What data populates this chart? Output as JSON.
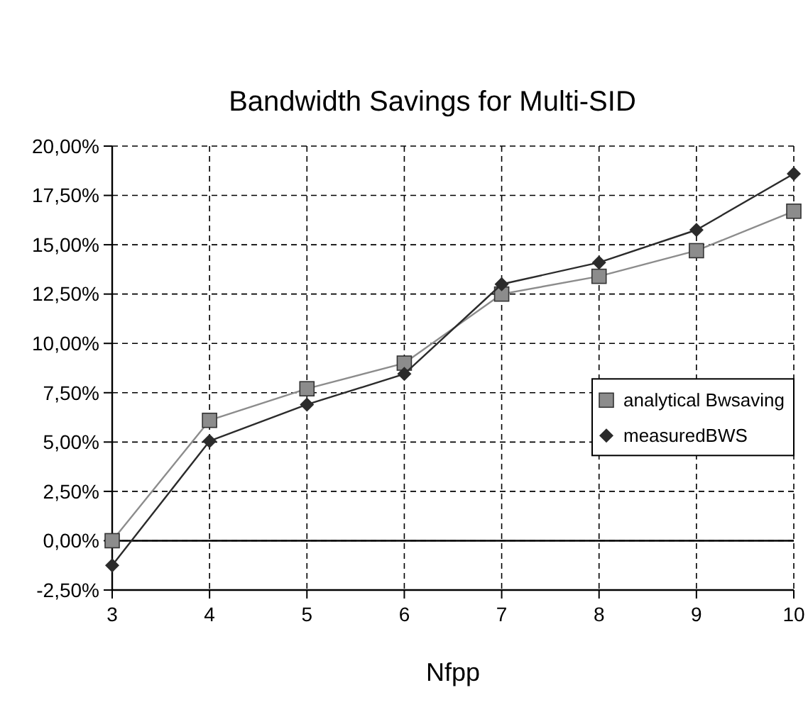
{
  "chart_data": {
    "type": "line",
    "title": "Bandwidth Savings for Multi-SID",
    "xlabel": "Nfpp",
    "x": [
      3,
      4,
      5,
      6,
      7,
      8,
      9,
      10
    ],
    "series": [
      {
        "name": "analytical Bwsaving",
        "color": "#8c8c8c",
        "marker": "square",
        "values": [
          0,
          6.1,
          7.7,
          9.0,
          12.5,
          13.4,
          14.7,
          16.7
        ]
      },
      {
        "name": "measuredBWS",
        "color": "#2b2b2b",
        "marker": "diamond",
        "values": [
          -1.25,
          5.05,
          6.9,
          8.45,
          13.0,
          14.1,
          15.75,
          18.6
        ]
      }
    ],
    "xlim": [
      3,
      10
    ],
    "xticks": [
      3,
      4,
      5,
      6,
      7,
      8,
      9,
      10
    ],
    "ylim": [
      -2.5,
      20
    ],
    "yticks": [
      {
        "value": -2.5,
        "label": "-2,50%"
      },
      {
        "value": 0,
        "label": "0,00%"
      },
      {
        "value": 2.5,
        "label": "2,50%"
      },
      {
        "value": 5,
        "label": "5,00%"
      },
      {
        "value": 7.5,
        "label": "7,50%"
      },
      {
        "value": 10,
        "label": "10,00%"
      },
      {
        "value": 12.5,
        "label": "12,50%"
      },
      {
        "value": 15,
        "label": "15,00%"
      },
      {
        "value": 17.5,
        "label": "17,50%"
      },
      {
        "value": 20,
        "label": "20,00%"
      }
    ],
    "ref_lines": [
      {
        "axis": "y",
        "value": 0,
        "color": "#000000"
      }
    ],
    "grid": true,
    "line_style": "solid",
    "legend": "right"
  }
}
